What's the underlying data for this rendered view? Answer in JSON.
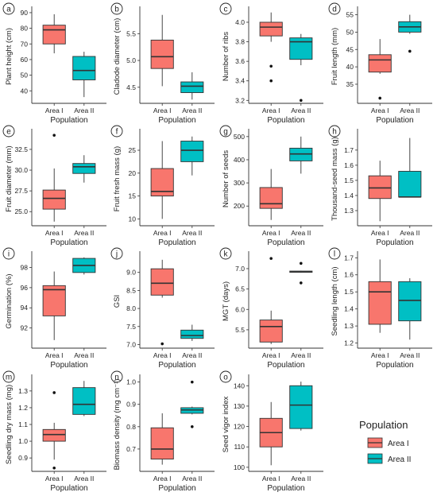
{
  "colors": {
    "area1": "#F8766D",
    "area2": "#00BFC4",
    "outline": "#333333"
  },
  "legend": {
    "title": "Population",
    "items": [
      "Area I",
      "Area II"
    ]
  },
  "chart_data": [
    {
      "type": "box",
      "letter": "a",
      "ylabel": "Plant height (cm)",
      "xlabel": "Population",
      "categories": [
        "Area I",
        "Area II"
      ],
      "ylim": [
        32,
        92
      ],
      "yticks": [
        40,
        50,
        60,
        70,
        80,
        90
      ],
      "boxes": [
        {
          "lower": 64,
          "q1": 70,
          "median": 79,
          "q3": 82,
          "upper": 89,
          "outliers": []
        },
        {
          "lower": 36,
          "q1": 47,
          "median": 53,
          "q3": 62,
          "upper": 65,
          "outliers": []
        }
      ]
    },
    {
      "type": "box",
      "letter": "b",
      "ylabel": "Cladode diameter (cm)",
      "xlabel": "Population",
      "categories": [
        "Area I",
        "Area II"
      ],
      "ylim": [
        4.2,
        5.95
      ],
      "yticks": [
        4.5,
        5.0,
        5.5
      ],
      "boxes": [
        {
          "lower": 4.52,
          "q1": 4.85,
          "median": 5.07,
          "q3": 5.38,
          "upper": 5.85,
          "outliers": []
        },
        {
          "lower": 4.27,
          "q1": 4.4,
          "median": 4.52,
          "q3": 4.6,
          "upper": 4.78,
          "outliers": []
        }
      ]
    },
    {
      "type": "box",
      "letter": "c",
      "ylabel": "Number of ribs",
      "xlabel": "Population",
      "categories": [
        "Area I",
        "Area II"
      ],
      "ylim": [
        3.17,
        4.13
      ],
      "yticks": [
        3.2,
        3.4,
        3.6,
        3.8,
        4.0
      ],
      "boxes": [
        {
          "lower": 3.8,
          "q1": 3.86,
          "median": 3.95,
          "q3": 4.0,
          "upper": 4.1,
          "outliers": [
            3.55,
            3.4
          ]
        },
        {
          "lower": 3.56,
          "q1": 3.62,
          "median": 3.8,
          "q3": 3.84,
          "upper": 3.88,
          "outliers": [
            3.2
          ]
        }
      ]
    },
    {
      "type": "box",
      "letter": "d",
      "ylabel": "Fruit length (mm)",
      "xlabel": "Population",
      "categories": [
        "Area I",
        "Area II"
      ],
      "ylim": [
        29.5,
        56.5
      ],
      "yticks": [
        35,
        40,
        45,
        50,
        55
      ],
      "boxes": [
        {
          "lower": 38,
          "q1": 38.5,
          "median": 42,
          "q3": 43.5,
          "upper": 48,
          "outliers": [
            31
          ]
        },
        {
          "lower": 49.5,
          "q1": 50,
          "median": 51.5,
          "q3": 53,
          "upper": 55,
          "outliers": [
            44.5
          ]
        }
      ]
    },
    {
      "type": "box",
      "letter": "e",
      "ylabel": "Fruit diameter (mm)",
      "xlabel": "Population",
      "categories": [
        "Area I",
        "Area II"
      ],
      "ylim": [
        23.3,
        34.6
      ],
      "yticks": [
        25.0,
        27.5,
        30.0,
        32.5
      ],
      "boxes": [
        {
          "lower": 23.8,
          "q1": 25.3,
          "median": 26.6,
          "q3": 27.6,
          "upper": 30.2,
          "outliers": [
            34.2
          ]
        },
        {
          "lower": 28.5,
          "q1": 29.6,
          "median": 30.4,
          "q3": 30.8,
          "upper": 31.8,
          "outliers": []
        }
      ]
    },
    {
      "type": "box",
      "letter": "f",
      "ylabel": "Fruit fresh mass (g)",
      "xlabel": "Population",
      "categories": [
        "Area I",
        "Area II"
      ],
      "ylim": [
        8.5,
        29
      ],
      "yticks": [
        10,
        15,
        20,
        25
      ],
      "boxes": [
        {
          "lower": 10,
          "q1": 15,
          "median": 16,
          "q3": 21,
          "upper": 27,
          "outliers": []
        },
        {
          "lower": 19.5,
          "q1": 22.5,
          "median": 25,
          "q3": 27,
          "upper": 28,
          "outliers": []
        }
      ]
    },
    {
      "type": "box",
      "letter": "g",
      "ylabel": "Number of seeds",
      "xlabel": "Population",
      "categories": [
        "Area I",
        "Area II"
      ],
      "ylim": [
        115,
        520
      ],
      "yticks": [
        200,
        300,
        400,
        500
      ],
      "boxes": [
        {
          "lower": 140,
          "q1": 190,
          "median": 210,
          "q3": 280,
          "upper": 360,
          "outliers": []
        },
        {
          "lower": 340,
          "q1": 395,
          "median": 425,
          "q3": 450,
          "upper": 500,
          "outliers": []
        }
      ]
    },
    {
      "type": "box",
      "letter": "h",
      "ylabel": "Thousand-seed mass (g)",
      "xlabel": "Population",
      "categories": [
        "Area I",
        "Area II"
      ],
      "ylim": [
        1.2,
        1.82
      ],
      "yticks": [
        1.3,
        1.4,
        1.5,
        1.6,
        1.7
      ],
      "boxes": [
        {
          "lower": 1.23,
          "q1": 1.38,
          "median": 1.45,
          "q3": 1.53,
          "upper": 1.63,
          "outliers": []
        },
        {
          "lower": 1.39,
          "q1": 1.39,
          "median": 1.39,
          "q3": 1.56,
          "upper": 1.78,
          "outliers": []
        }
      ]
    },
    {
      "type": "box",
      "letter": "i",
      "ylabel": "Germination (%)",
      "xlabel": "Population",
      "categories": [
        "Area I",
        "Area II"
      ],
      "ylim": [
        90,
        99.3
      ],
      "yticks": [
        92,
        94,
        96,
        98
      ],
      "boxes": [
        {
          "lower": 90.8,
          "q1": 93.2,
          "median": 95.8,
          "q3": 96.2,
          "upper": 97.6,
          "outliers": []
        },
        {
          "lower": 97.3,
          "q1": 97.5,
          "median": 98.2,
          "q3": 98.9,
          "upper": 99.0,
          "outliers": []
        }
      ]
    },
    {
      "type": "box",
      "letter": "j",
      "ylabel": "GSI",
      "xlabel": "Population",
      "categories": [
        "Area I",
        "Area II"
      ],
      "ylim": [
        6.9,
        9.5
      ],
      "yticks": [
        7.0,
        7.5,
        8.0,
        8.5,
        9.0
      ],
      "boxes": [
        {
          "lower": 8.3,
          "q1": 8.37,
          "median": 8.7,
          "q3": 9.1,
          "upper": 9.35,
          "outliers": [
            7.02
          ]
        },
        {
          "lower": 7.1,
          "q1": 7.17,
          "median": 7.25,
          "q3": 7.4,
          "upper": 7.55,
          "outliers": []
        }
      ]
    },
    {
      "type": "box",
      "letter": "k",
      "ylabel": "MGT (days)",
      "xlabel": "Population",
      "categories": [
        "Area I",
        "Area II"
      ],
      "ylim": [
        5.05,
        7.35
      ],
      "yticks": [
        5.5,
        6.0,
        6.5,
        7.0
      ],
      "boxes": [
        {
          "lower": 5.15,
          "q1": 5.2,
          "median": 5.58,
          "q3": 5.74,
          "upper": 5.97,
          "outliers": [
            7.25
          ]
        },
        {
          "lower": 6.9,
          "q1": 6.91,
          "median": 6.92,
          "q3": 6.94,
          "upper": 6.95,
          "outliers": [
            7.13,
            6.65
          ]
        }
      ]
    },
    {
      "type": "box",
      "letter": "l",
      "ylabel": "Seedling length (cm)",
      "xlabel": "Population",
      "categories": [
        "Area I",
        "Area II"
      ],
      "ylim": [
        1.17,
        1.72
      ],
      "yticks": [
        1.2,
        1.3,
        1.4,
        1.5,
        1.6,
        1.7
      ],
      "boxes": [
        {
          "lower": 1.26,
          "q1": 1.31,
          "median": 1.5,
          "q3": 1.56,
          "upper": 1.69,
          "outliers": []
        },
        {
          "lower": 1.22,
          "q1": 1.33,
          "median": 1.45,
          "q3": 1.56,
          "upper": 1.58,
          "outliers": []
        }
      ]
    },
    {
      "type": "box",
      "letter": "m",
      "ylabel": "Seedling dry mass (mg)",
      "xlabel": "Population",
      "categories": [
        "Area I",
        "Area II"
      ],
      "ylim": [
        0.82,
        1.38
      ],
      "yticks": [
        0.9,
        1.0,
        1.1,
        1.2,
        1.3
      ],
      "boxes": [
        {
          "lower": 0.89,
          "q1": 1.0,
          "median": 1.04,
          "q3": 1.07,
          "upper": 1.11,
          "outliers": [
            1.29,
            0.84
          ]
        },
        {
          "lower": 1.15,
          "q1": 1.16,
          "median": 1.22,
          "q3": 1.32,
          "upper": 1.36,
          "outliers": []
        }
      ]
    },
    {
      "type": "box",
      "letter": "n",
      "ylabel": "Biomass density (mg cm⁻¹)",
      "xlabel": "Population",
      "categories": [
        "Area I",
        "Area II"
      ],
      "ylim": [
        0.6,
        1.02
      ],
      "yticks": [
        0.7,
        0.8,
        0.9,
        1.0
      ],
      "boxes": [
        {
          "lower": 0.63,
          "q1": 0.655,
          "median": 0.7,
          "q3": 0.795,
          "upper": 0.86,
          "outliers": []
        },
        {
          "lower": 0.855,
          "q1": 0.86,
          "median": 0.875,
          "q3": 0.885,
          "upper": 0.89,
          "outliers": [
            1.0,
            0.8
          ]
        }
      ]
    },
    {
      "type": "box",
      "letter": "o",
      "ylabel": "Seed vigor index",
      "xlabel": "Population",
      "categories": [
        "Area I",
        "Area II"
      ],
      "ylim": [
        98,
        144
      ],
      "yticks": [
        100,
        110,
        120,
        130,
        140
      ],
      "boxes": [
        {
          "lower": 101,
          "q1": 110,
          "median": 117,
          "q3": 124,
          "upper": 132,
          "outliers": []
        },
        {
          "lower": 118,
          "q1": 119,
          "median": 130.5,
          "q3": 140,
          "upper": 142,
          "outliers": []
        }
      ]
    }
  ]
}
